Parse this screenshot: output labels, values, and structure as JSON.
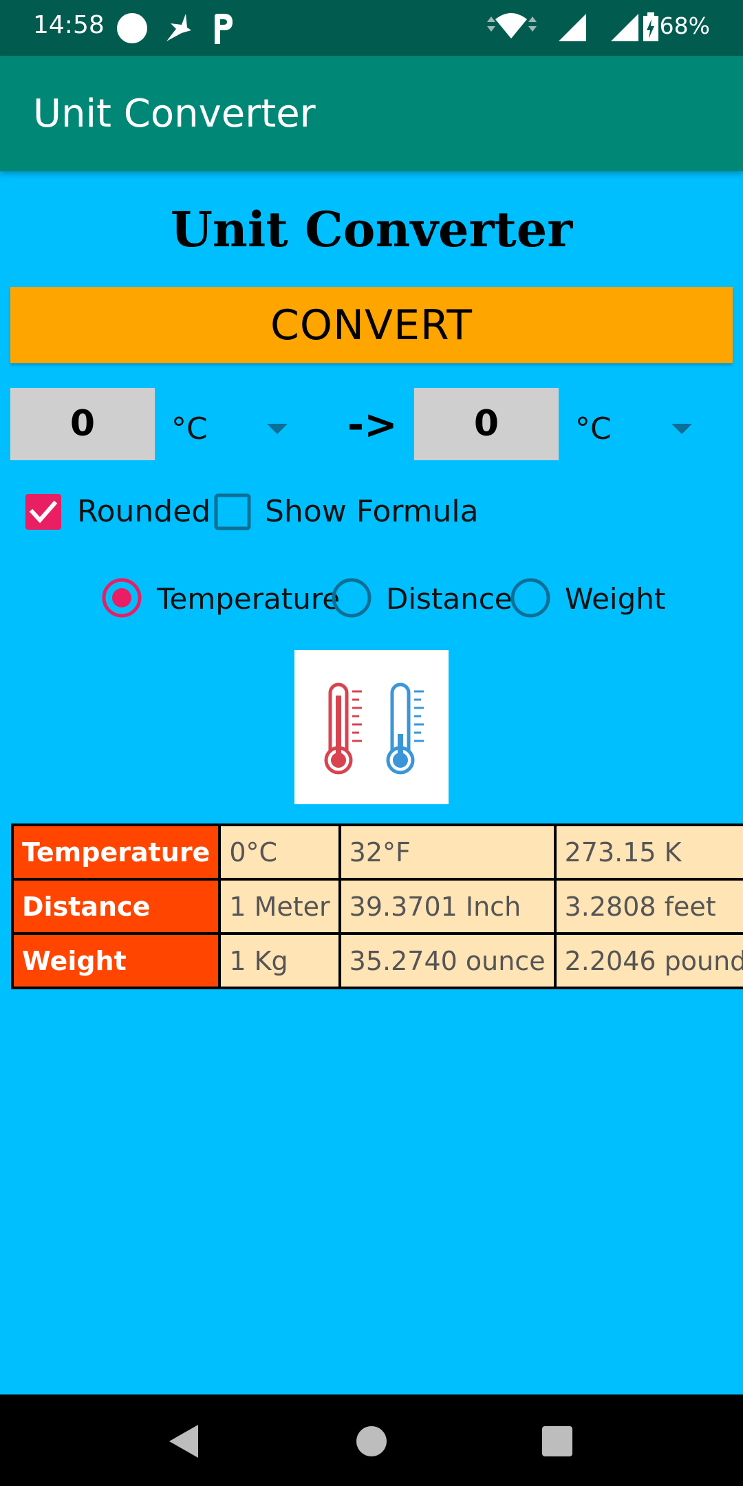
{
  "status_bar": {
    "time": "14:58",
    "battery": "68%"
  },
  "app_bar": {
    "title": "Unit Converter"
  },
  "main": {
    "title": "Unit Converter",
    "convert_label": "CONVERT",
    "from_value": "0",
    "from_unit": "°C",
    "arrow": "->",
    "to_value": "0",
    "to_unit": "°C",
    "rounded_label": "Rounded",
    "rounded_checked": true,
    "show_formula_label": "Show Formula",
    "show_formula_checked": false,
    "radios": [
      {
        "label": "Temperature",
        "selected": true
      },
      {
        "label": "Distance",
        "selected": false
      },
      {
        "label": "Weight",
        "selected": false
      }
    ]
  },
  "table": {
    "rows": [
      {
        "header": "Temperature",
        "c1": "0°C",
        "c2": "32°F",
        "c3": "273.15 K"
      },
      {
        "header": "Distance",
        "c1": "1 Meter",
        "c2": "39.3701 Inch",
        "c3": "3.2808 feet"
      },
      {
        "header": "Weight",
        "c1": "1 Kg",
        "c2": "35.2740 ounce",
        "c3": "2.2046 pound"
      }
    ]
  },
  "colors": {
    "background": "#00BFFF",
    "status_bar": "#015C4F",
    "app_bar": "#018776",
    "convert_button": "#FFA500",
    "accent": "#E91E63",
    "table_header": "#FF4500",
    "table_cell": "#FFE4B5"
  },
  "icons": [
    "circle-notification-icon",
    "bird-notification-icon",
    "p-notification-icon",
    "wifi-icon",
    "signal-icon",
    "signal-icon-2",
    "battery-icon",
    "thermometer-icon",
    "back-icon",
    "home-icon",
    "recents-icon"
  ]
}
